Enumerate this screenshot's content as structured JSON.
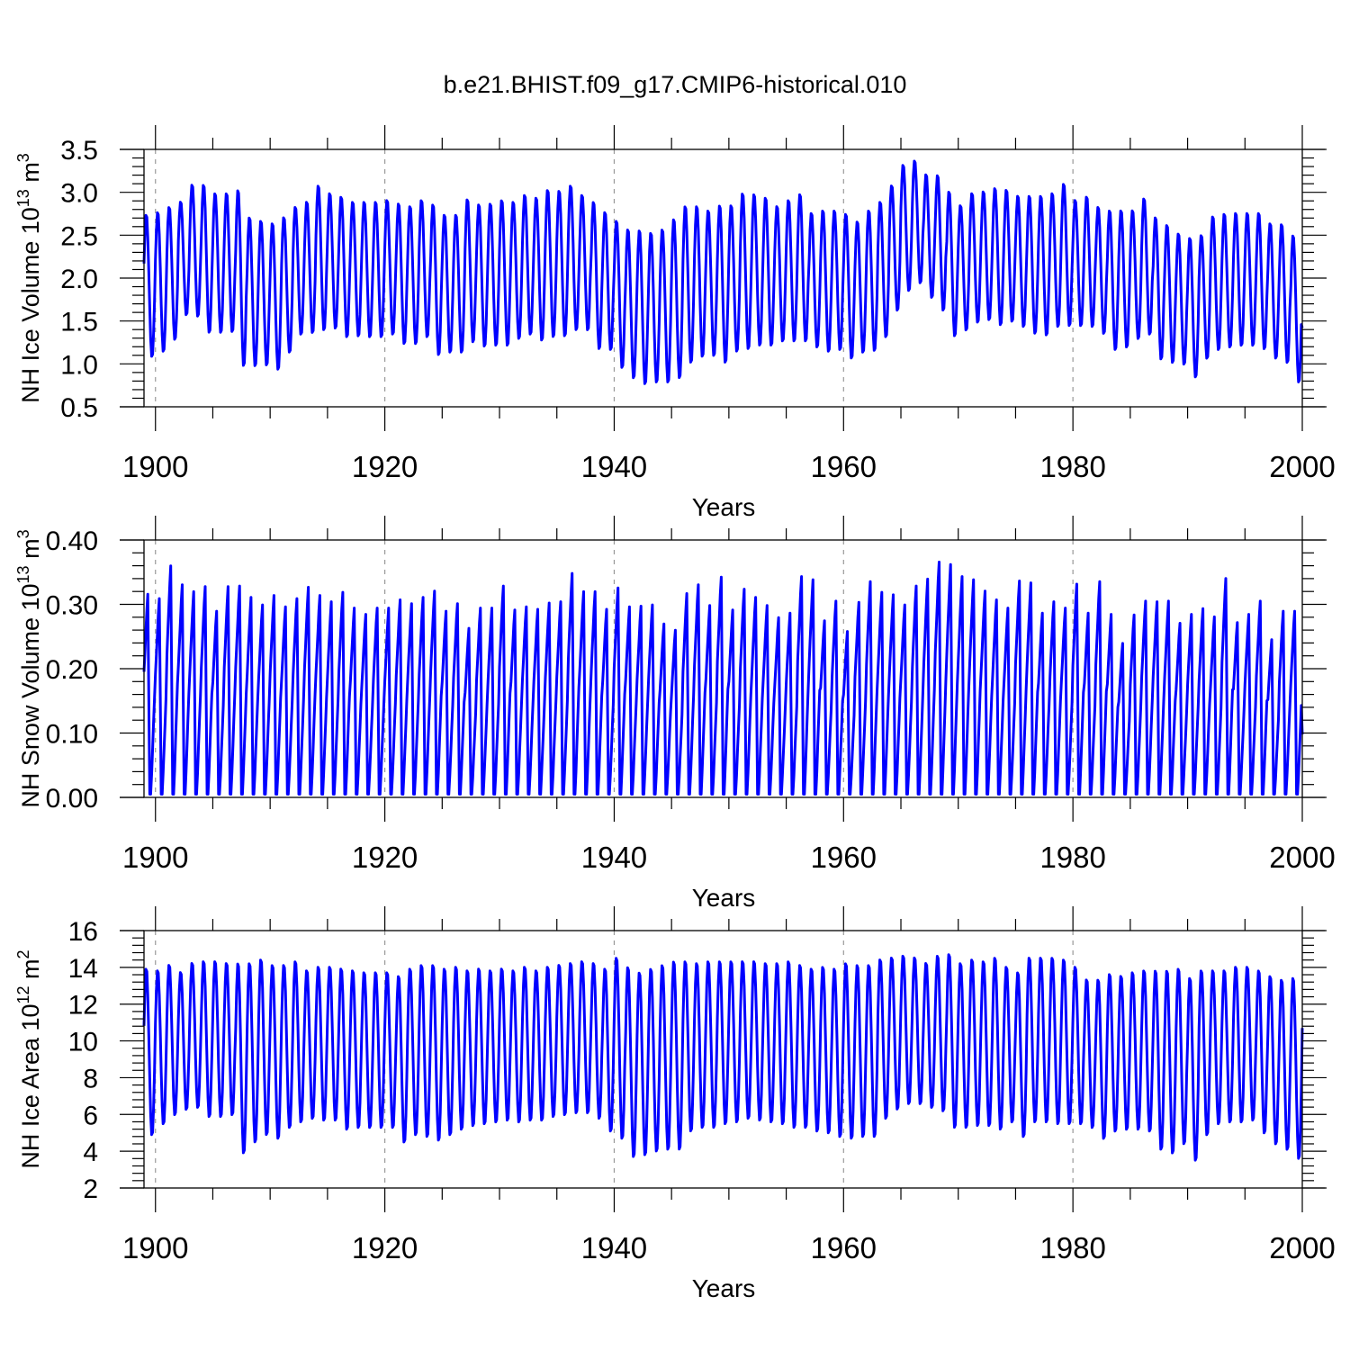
{
  "title": "b.e21.BHIST.f09_g17.CMIP6-historical.010",
  "colors": {
    "series": "#0000ff",
    "axis": "#000000",
    "grid": "#999999"
  },
  "chart_data": [
    {
      "type": "line",
      "ylabel_main": "NH Ice Volume 10",
      "ylabel_exp": "13",
      "ylabel_unit": " m",
      "ylabel_unit_exp": "3",
      "xlabel": "Years",
      "xlim": [
        1899,
        2000
      ],
      "ylim": [
        0.5,
        3.5
      ],
      "x_ticks": [
        "1900",
        "1920",
        "1940",
        "1960",
        "1980",
        "2000"
      ],
      "y_ticks": [
        "0.5",
        "1.0",
        "1.5",
        "2.0",
        "2.5",
        "3.0",
        "3.5"
      ],
      "grid": "vertical dashed at major x ticks",
      "series": [
        {
          "color": "#0000ff",
          "note_resolution": "monthly seasonal cycle",
          "annual_max": [
            2.75,
            2.78,
            2.84,
            2.9,
            3.1,
            3.1,
            3.0,
            3.0,
            3.04,
            2.72,
            2.68,
            2.65,
            2.72,
            2.84,
            2.9,
            3.09,
            3.0,
            2.96,
            2.9,
            2.9,
            2.9,
            2.92,
            2.88,
            2.85,
            2.92,
            2.87,
            2.75,
            2.75,
            2.93,
            2.87,
            2.88,
            2.92,
            2.9,
            2.98,
            2.95,
            3.04,
            3.03,
            3.09,
            2.98,
            2.9,
            2.78,
            2.68,
            2.58,
            2.57,
            2.54,
            2.58,
            2.7,
            2.85,
            2.85,
            2.8,
            2.86,
            2.86,
            3.0,
            2.99,
            2.95,
            2.85,
            2.92,
            2.99,
            2.77,
            2.8,
            2.8,
            2.76,
            2.67,
            2.8,
            2.9,
            3.09,
            3.33,
            3.38,
            3.22,
            3.21,
            3.02,
            2.86,
            3.0,
            3.02,
            3.06,
            3.04,
            2.97,
            2.97,
            2.97,
            3.0,
            3.11,
            2.92,
            2.96,
            2.84,
            2.8,
            2.8,
            2.8,
            2.94,
            2.72,
            2.63,
            2.53,
            2.48,
            2.51,
            2.73,
            2.76,
            2.77,
            2.77,
            2.77,
            2.65,
            2.64,
            2.51
          ],
          "annual_min": [
            1.07,
            1.13,
            1.27,
            1.56,
            1.54,
            1.35,
            1.35,
            1.36,
            0.96,
            0.96,
            0.97,
            0.92,
            1.12,
            1.33,
            1.35,
            1.38,
            1.4,
            1.3,
            1.31,
            1.3,
            1.3,
            1.33,
            1.22,
            1.22,
            1.3,
            1.09,
            1.12,
            1.12,
            1.24,
            1.19,
            1.2,
            1.2,
            1.28,
            1.33,
            1.26,
            1.3,
            1.31,
            1.38,
            1.38,
            1.16,
            1.15,
            0.94,
            0.82,
            0.75,
            0.77,
            0.77,
            0.82,
            1.0,
            1.07,
            1.08,
            1.0,
            1.13,
            1.16,
            1.2,
            1.2,
            1.25,
            1.25,
            1.25,
            1.18,
            1.13,
            1.15,
            1.05,
            1.12,
            1.14,
            1.3,
            1.61,
            1.84,
            1.93,
            1.76,
            1.61,
            1.31,
            1.38,
            1.47,
            1.5,
            1.44,
            1.48,
            1.42,
            1.34,
            1.32,
            1.42,
            1.43,
            1.43,
            1.42,
            1.34,
            1.15,
            1.18,
            1.28,
            1.33,
            1.04,
            1.0,
            0.98,
            0.83,
            1.05,
            1.15,
            1.18,
            1.2,
            1.2,
            1.16,
            1.05,
            1.0,
            0.77
          ],
          "end_value": 1.42
        }
      ]
    },
    {
      "type": "line",
      "ylabel_main": "NH Snow Volume 10",
      "ylabel_exp": "13",
      "ylabel_unit": " m",
      "ylabel_unit_exp": "3",
      "xlabel": "Years",
      "xlim": [
        1899,
        2000
      ],
      "ylim": [
        0.0,
        0.4
      ],
      "x_ticks": [
        "1900",
        "1920",
        "1940",
        "1960",
        "1980",
        "2000"
      ],
      "y_ticks": [
        "0.00",
        "0.10",
        "0.20",
        "0.30",
        "0.40"
      ],
      "grid": "vertical dashed at major x ticks",
      "series": [
        {
          "color": "#0000ff",
          "note_resolution": "monthly seasonal cycle",
          "annual_max": [
            0.322,
            0.315,
            0.367,
            0.337,
            0.326,
            0.334,
            0.295,
            0.334,
            0.335,
            0.317,
            0.305,
            0.32,
            0.302,
            0.315,
            0.333,
            0.32,
            0.31,
            0.325,
            0.3,
            0.29,
            0.3,
            0.3,
            0.313,
            0.307,
            0.317,
            0.327,
            0.295,
            0.307,
            0.268,
            0.3,
            0.3,
            0.335,
            0.297,
            0.302,
            0.298,
            0.308,
            0.31,
            0.355,
            0.326,
            0.326,
            0.298,
            0.332,
            0.302,
            0.303,
            0.305,
            0.275,
            0.265,
            0.323,
            0.337,
            0.304,
            0.349,
            0.297,
            0.33,
            0.317,
            0.304,
            0.285,
            0.292,
            0.35,
            0.345,
            0.28,
            0.311,
            0.263,
            0.309,
            0.342,
            0.325,
            0.321,
            0.305,
            0.335,
            0.346,
            0.373,
            0.369,
            0.35,
            0.345,
            0.327,
            0.313,
            0.3,
            0.343,
            0.34,
            0.292,
            0.31,
            0.3,
            0.338,
            0.292,
            0.342,
            0.29,
            0.244,
            0.289,
            0.311,
            0.31,
            0.311,
            0.276,
            0.29,
            0.299,
            0.286,
            0.347,
            0.277,
            0.29,
            0.311,
            0.25,
            0.295,
            0.295
          ],
          "annual_min": 0.005,
          "end_value": 0.098
        }
      ]
    },
    {
      "type": "line",
      "ylabel_main": "NH Ice Area 10",
      "ylabel_exp": "12",
      "ylabel_unit": " m",
      "ylabel_unit_exp": "2",
      "xlabel": "Years",
      "xlim": [
        1899,
        2000
      ],
      "ylim": [
        2,
        16
      ],
      "x_ticks": [
        "1900",
        "1920",
        "1940",
        "1960",
        "1980",
        "2000"
      ],
      "y_ticks": [
        "2",
        "4",
        "6",
        "8",
        "10",
        "12",
        "14",
        "16"
      ],
      "grid": "vertical dashed at major x ticks",
      "series": [
        {
          "color": "#0000ff",
          "note_resolution": "monthly seasonal cycle",
          "annual_max": [
            14.0,
            13.9,
            14.2,
            13.8,
            14.3,
            14.4,
            14.4,
            14.3,
            14.3,
            14.3,
            14.5,
            14.2,
            14.2,
            14.4,
            13.9,
            14.1,
            14.1,
            14.0,
            13.9,
            13.8,
            13.8,
            13.8,
            13.6,
            14.0,
            14.2,
            14.2,
            14.0,
            14.1,
            13.9,
            14.0,
            13.9,
            14.0,
            13.9,
            14.1,
            13.9,
            14.1,
            14.2,
            14.3,
            14.4,
            14.3,
            14.0,
            14.6,
            14.1,
            13.8,
            14.0,
            14.2,
            14.4,
            14.4,
            14.3,
            14.4,
            14.4,
            14.4,
            14.4,
            14.4,
            14.3,
            14.3,
            14.4,
            14.2,
            14.0,
            14.1,
            14.0,
            14.3,
            14.2,
            14.2,
            14.5,
            14.6,
            14.7,
            14.6,
            14.3,
            14.7,
            14.8,
            14.3,
            14.5,
            14.4,
            14.6,
            14.1,
            13.8,
            14.6,
            14.6,
            14.6,
            14.5,
            14.1,
            13.4,
            13.4,
            13.7,
            13.6,
            13.8,
            13.9,
            13.9,
            13.9,
            14.0,
            13.5,
            13.9,
            13.9,
            13.9,
            14.1,
            14.1,
            13.9,
            13.6,
            13.4,
            13.5
          ],
          "annual_min": [
            4.8,
            5.4,
            5.9,
            6.2,
            6.3,
            5.8,
            5.8,
            5.9,
            3.8,
            4.4,
            4.8,
            4.6,
            5.2,
            5.5,
            5.7,
            5.6,
            5.6,
            5.1,
            5.2,
            5.2,
            5.2,
            5.2,
            4.4,
            4.8,
            4.7,
            4.5,
            4.8,
            5.1,
            5.3,
            5.4,
            5.5,
            5.6,
            5.5,
            5.6,
            5.6,
            5.8,
            5.9,
            6.0,
            6.0,
            5.7,
            5.0,
            4.6,
            3.6,
            3.7,
            3.9,
            4.0,
            4.0,
            5.0,
            5.2,
            5.2,
            5.4,
            5.5,
            5.7,
            5.6,
            5.5,
            5.4,
            5.2,
            5.2,
            5.0,
            4.9,
            4.7,
            4.6,
            4.7,
            4.7,
            5.7,
            6.2,
            6.5,
            6.5,
            6.3,
            6.1,
            5.2,
            5.2,
            5.3,
            5.3,
            5.1,
            5.5,
            4.7,
            5.5,
            5.5,
            5.4,
            5.4,
            5.4,
            5.2,
            4.6,
            5.0,
            5.1,
            5.1,
            5.0,
            4.0,
            3.8,
            4.3,
            3.4,
            4.8,
            5.4,
            5.5,
            5.5,
            5.6,
            4.9,
            4.3,
            4.0,
            3.5
          ],
          "end_value": 10.7
        }
      ]
    }
  ]
}
